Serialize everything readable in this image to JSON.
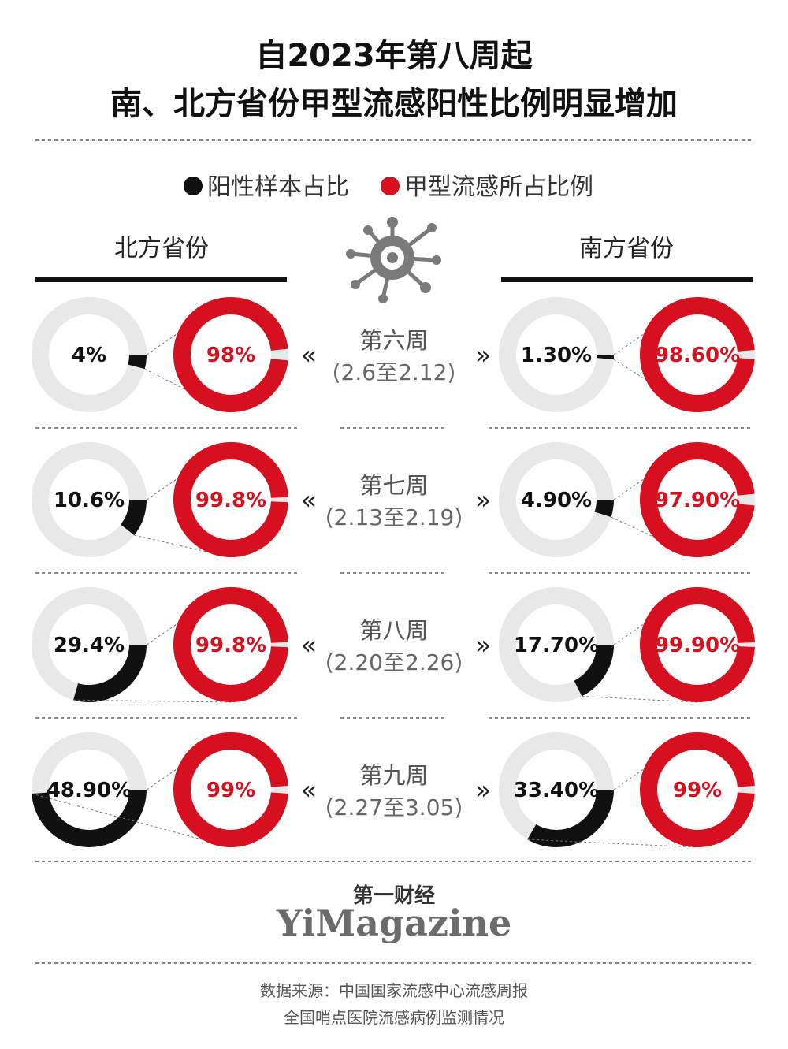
{
  "title": {
    "line1": "自2023年第八周起",
    "line2": "南、北方省份甲型流感阳性比例明显增加"
  },
  "legend": {
    "positive_label": "阳性样本占比",
    "flu_a_label": "甲型流感所占比例",
    "positive_color": "#111111",
    "flu_a_color": "#d6101e",
    "track_color": "#e8e8e8"
  },
  "regions": {
    "north": "北方省份",
    "south": "南方省份"
  },
  "chart_data": {
    "type": "donut",
    "groups": [
      "北方省份",
      "南方省份"
    ],
    "series": [
      {
        "name": "阳性样本占比",
        "color": "#111111"
      },
      {
        "name": "甲型流感所占比例",
        "color": "#d6101e"
      }
    ],
    "weeks": [
      {
        "label": "第六周",
        "dates": "(2.6至2.12)",
        "north": {
          "positive": 4,
          "positive_label": "4%",
          "flu_a": 98,
          "flu_a_label": "98%"
        },
        "south": {
          "positive": 1.3,
          "positive_label": "1.30%",
          "flu_a": 98.6,
          "flu_a_label": "98.60%"
        }
      },
      {
        "label": "第七周",
        "dates": "(2.13至2.19)",
        "north": {
          "positive": 10.6,
          "positive_label": "10.6%",
          "flu_a": 99.8,
          "flu_a_label": "99.8%"
        },
        "south": {
          "positive": 4.9,
          "positive_label": "4.90%",
          "flu_a": 97.9,
          "flu_a_label": "97.90%"
        }
      },
      {
        "label": "第八周",
        "dates": "(2.20至2.26)",
        "north": {
          "positive": 29.4,
          "positive_label": "29.4%",
          "flu_a": 99.8,
          "flu_a_label": "99.8%"
        },
        "south": {
          "positive": 17.7,
          "positive_label": "17.70%",
          "flu_a": 99.9,
          "flu_a_label": "99.90%"
        }
      },
      {
        "label": "第九周",
        "dates": "(2.27至3.05)",
        "north": {
          "positive": 48.9,
          "positive_label": "48.90%",
          "flu_a": 99,
          "flu_a_label": "99%"
        },
        "south": {
          "positive": 33.4,
          "positive_label": "33.40%",
          "flu_a": 99,
          "flu_a_label": "99%"
        }
      }
    ]
  },
  "decor": {
    "chevron_left": "«",
    "chevron_right": "»",
    "virus_icon": "virus-icon"
  },
  "brand": {
    "cn": "第一财经",
    "en": "YiMagazine"
  },
  "source": {
    "line1": "数据来源：中国国家流感中心流感周报",
    "line2": "全国哨点医院流感病例监测情况"
  }
}
